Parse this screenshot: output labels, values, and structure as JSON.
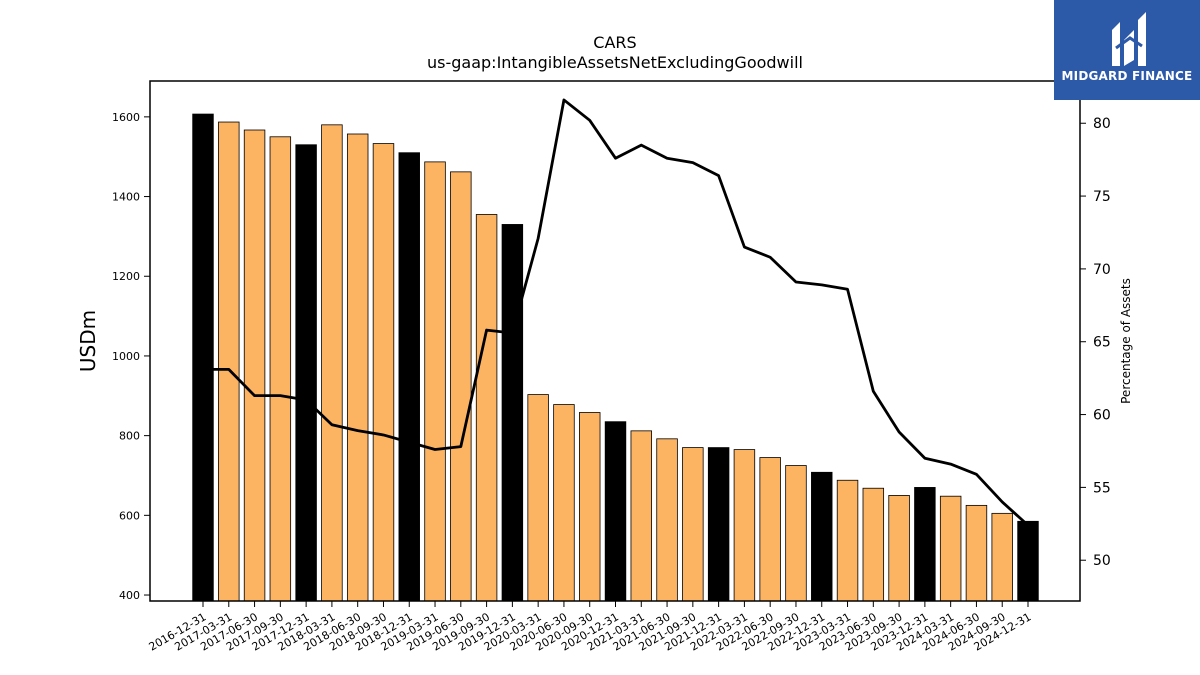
{
  "logo": {
    "text": "MIDGARD FINANCE",
    "bg_color": "#2d5aa8"
  },
  "chart_data": {
    "type": "bar",
    "title": "CARS",
    "subtitle": "us-gaap:IntangibleAssetsNetExcludingGoodwill",
    "ylabel": "USDm",
    "y2label": "Percentage of Assets",
    "ylim": [
      385,
      1690
    ],
    "y2lim": [
      47.2,
      82.9
    ],
    "yticks": [
      400,
      600,
      800,
      1000,
      1200,
      1400,
      1600
    ],
    "y2ticks": [
      50,
      55,
      60,
      65,
      70,
      75,
      80
    ],
    "categories": [
      "2016-12-31",
      "2017-03-31",
      "2017-06-30",
      "2017-09-30",
      "2017-12-31",
      "2018-03-31",
      "2018-06-30",
      "2018-09-30",
      "2018-12-31",
      "2019-03-31",
      "2019-06-30",
      "2019-09-30",
      "2019-12-31",
      "2020-03-31",
      "2020-06-30",
      "2020-09-30",
      "2020-12-31",
      "2021-03-31",
      "2021-06-30",
      "2021-09-30",
      "2021-12-31",
      "2022-03-31",
      "2022-06-30",
      "2022-09-30",
      "2022-12-31",
      "2023-03-31",
      "2023-06-30",
      "2023-09-30",
      "2023-12-31",
      "2024-03-31",
      "2024-06-30",
      "2024-09-30",
      "2024-12-31"
    ],
    "series": [
      {
        "type": "bar",
        "values": [
          1607,
          1587,
          1567,
          1550,
          1530,
          1580,
          1557,
          1533,
          1510,
          1487,
          1462,
          1355,
          1330,
          903,
          878,
          858,
          835,
          812,
          792,
          770,
          770,
          765,
          745,
          725,
          708,
          688,
          668,
          650,
          670,
          648,
          625,
          605,
          585
        ]
      },
      {
        "type": "line",
        "axis": "right",
        "values": [
          63.1,
          63.1,
          61.3,
          61.3,
          61.0,
          59.3,
          58.9,
          58.6,
          58.1,
          57.6,
          57.8,
          65.8,
          65.6,
          72.1,
          81.6,
          80.2,
          77.6,
          78.5,
          77.6,
          77.3,
          76.4,
          71.5,
          70.8,
          69.1,
          68.9,
          68.6,
          61.6,
          58.8,
          57.0,
          56.6,
          55.9,
          54.0,
          52.4
        ]
      }
    ],
    "bar_colors": {
      "year_end": "#000000",
      "quarter": "#fdb462"
    },
    "line_color": "#000000",
    "grid": false,
    "legend": "none"
  }
}
